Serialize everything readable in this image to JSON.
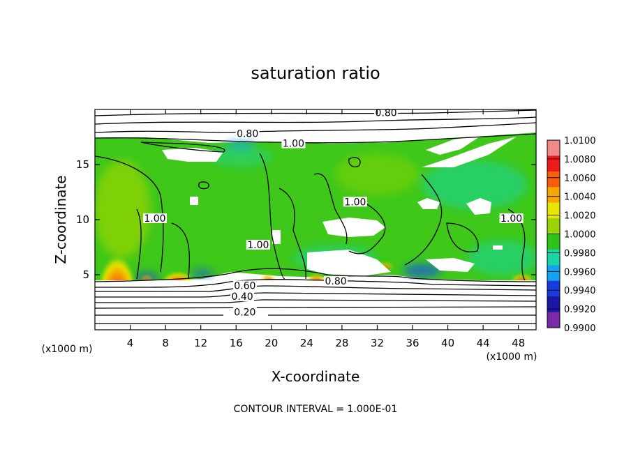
{
  "chart_data": {
    "type": "heatmap",
    "title": "saturation ratio",
    "xlabel": "X-coordinate",
    "ylabel": "Z-coordinate",
    "x_unit": "(x1000 m)",
    "x_unit_right": "(x1000 m)",
    "xlim": [
      0,
      50
    ],
    "ylim": [
      0,
      20
    ],
    "x_ticks": [
      4,
      8,
      12,
      16,
      20,
      24,
      28,
      32,
      36,
      40,
      44,
      48
    ],
    "y_ticks": [
      5,
      10,
      15
    ],
    "colorbar": {
      "levels": [
        "1.0100",
        "1.0080",
        "1.0060",
        "1.0040",
        "1.0020",
        "1.0000",
        "0.9980",
        "0.9960",
        "0.9940",
        "0.9920",
        "0.9900"
      ],
      "colors": [
        "#f08a8a",
        "#ee1a1a",
        "#f75c10",
        "#f7a600",
        "#e6e600",
        "#9ad400",
        "#2ec21a",
        "#19d6a4",
        "#14a3f0",
        "#1a3ae0",
        "#1a16a8",
        "#7a2aa8"
      ]
    },
    "contour_labels": [
      {
        "text": "0.80",
        "x": 33.0,
        "z": 19.6
      },
      {
        "text": "0.80",
        "x": 17.3,
        "z": 17.7
      },
      {
        "text": "1.00",
        "x": 22.5,
        "z": 16.8
      },
      {
        "text": "1.00",
        "x": 6.8,
        "z": 10.0
      },
      {
        "text": "1.00",
        "x": 29.5,
        "z": 11.5
      },
      {
        "text": "1.00",
        "x": 18.5,
        "z": 7.6
      },
      {
        "text": "1.00",
        "x": 47.2,
        "z": 10.0
      },
      {
        "text": "0.80",
        "x": 27.3,
        "z": 4.3
      },
      {
        "text": "0.60",
        "x": 17.0,
        "z": 3.9
      },
      {
        "text": "0.40",
        "x": 16.7,
        "z": 2.9
      },
      {
        "text": "0.20",
        "x": 17.0,
        "z": 1.5
      }
    ],
    "footer": "CONTOUR INTERVAL = 1.000E-01"
  }
}
